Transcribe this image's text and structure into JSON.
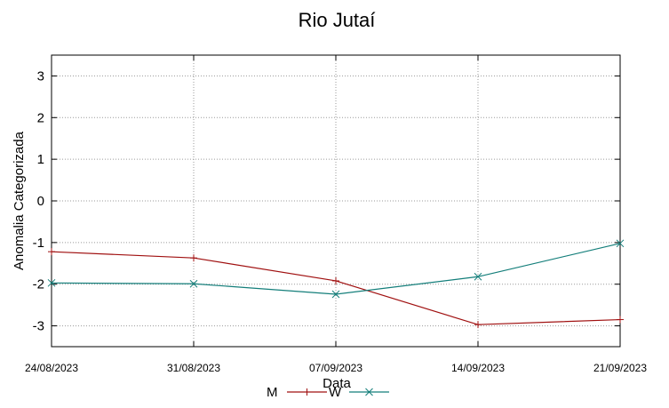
{
  "chart_data": {
    "type": "line",
    "title": "Rio Jutaí",
    "xlabel": "Data",
    "ylabel": "Anomalia Categorizada",
    "x": [
      "24/08/2023",
      "31/08/2023",
      "07/09/2023",
      "14/09/2023",
      "21/09/2023"
    ],
    "ylim": [
      -3.5,
      3.5
    ],
    "yticks": [
      3,
      2,
      1,
      0,
      -1,
      -2,
      -3
    ],
    "grid": true,
    "legend": "bottom-center",
    "series": [
      {
        "name": "M",
        "values": [
          -1.22,
          -1.37,
          -1.92,
          -2.97,
          -2.85
        ],
        "color": "#a01010",
        "marker": "plus"
      },
      {
        "name": "W",
        "values": [
          -1.97,
          -1.99,
          -2.24,
          -1.82,
          -1.02
        ],
        "color": "#137e7a",
        "marker": "cross"
      }
    ]
  }
}
